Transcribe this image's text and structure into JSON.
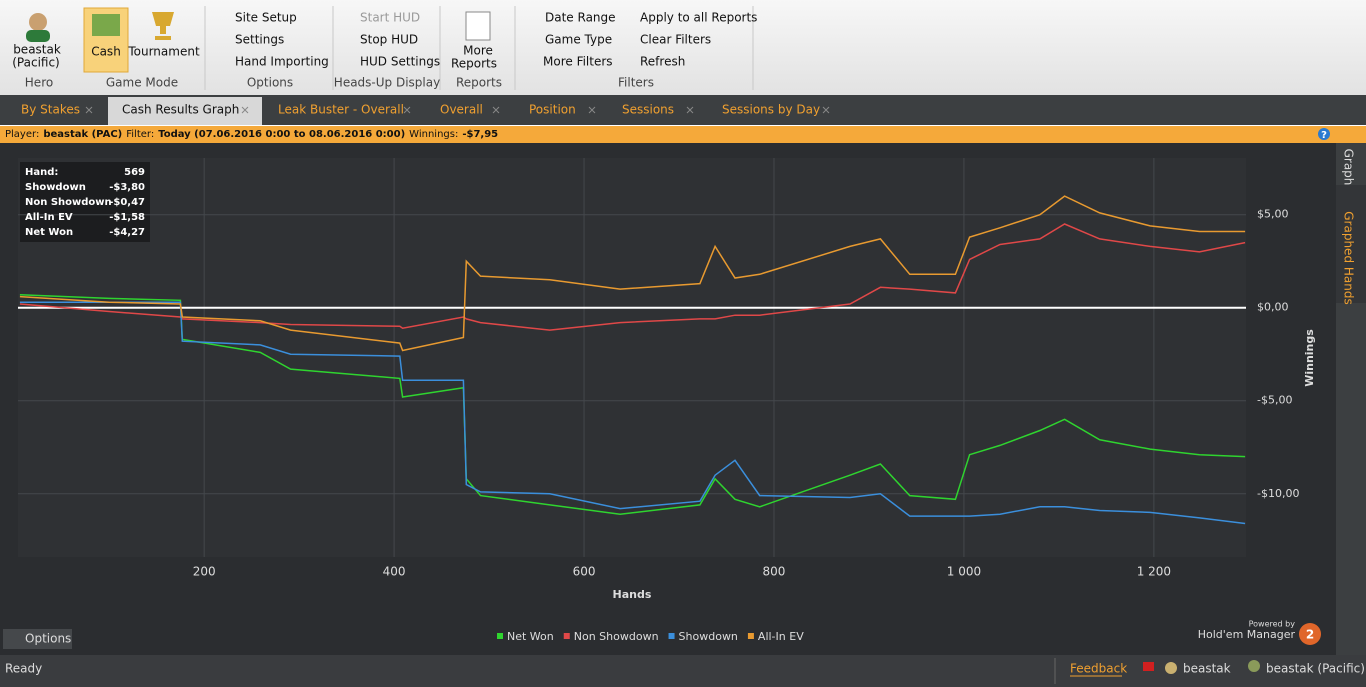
{
  "ribbon": {
    "hero": {
      "name": "beastak",
      "site": "(Pacific)",
      "group": "Hero"
    },
    "game_mode": {
      "items": [
        "Cash",
        "Tournament"
      ],
      "group": "Game Mode"
    },
    "options": {
      "items": [
        "Site Setup",
        "Settings",
        "Hand Importing"
      ],
      "group": "Options"
    },
    "hud": {
      "items": [
        "Start HUD",
        "Stop HUD",
        "HUD Settings"
      ],
      "group": "Heads-Up Display"
    },
    "reports": {
      "items": [
        "More",
        "Reports"
      ],
      "group": "Reports"
    },
    "filters": {
      "items": [
        "Date Range",
        "Game Type",
        "More Filters",
        "Apply to all Reports",
        "Clear Filters",
        "Refresh"
      ],
      "group": "Filters"
    }
  },
  "tabs": [
    "By Stakes",
    "Cash Results Graph",
    "Leak Buster - Overall",
    "Overall",
    "Position",
    "Sessions",
    "Sessions by Day"
  ],
  "info_bar": {
    "player_label": "Player:",
    "player": "beastak (PAC)",
    "filter_label": "Filter:",
    "filter": "Today (07.06.2016 0:00 to 08.06.2016 0:00)",
    "winnings_label": "Winnings:",
    "winnings": "-$7,95",
    "help": "?"
  },
  "stats": [
    [
      "Hand:",
      "569"
    ],
    [
      "Showdown",
      "-$3,80"
    ],
    [
      "Non Showdown",
      "-$0,47"
    ],
    [
      "All-In EV",
      "-$1,58"
    ],
    [
      "Net Won",
      "-$4,27"
    ]
  ],
  "side_tabs": [
    "Graph",
    "Graphed Hands"
  ],
  "options_button": "Options",
  "branding": {
    "powered": "Powered by",
    "product": "Hold'em Manager",
    "version": "2"
  },
  "status": {
    "ready": "Ready",
    "feedback": "Feedback",
    "user": "beastak",
    "hero": "beastak (Pacific)"
  },
  "chart_data": {
    "type": "line",
    "xlabel": "Hands",
    "ylabel": "Winnings",
    "grid": true,
    "x": [
      6,
      100,
      175,
      177,
      259,
      291,
      406,
      409,
      473,
      476,
      491,
      564,
      638,
      722,
      738,
      759,
      785,
      880,
      912,
      943,
      991,
      1006,
      1038,
      1080,
      1106,
      1143,
      1196,
      1248,
      1296
    ],
    "series": [
      {
        "name": "Net Won",
        "color": "#2fd42f",
        "values": [
          0.7,
          0.5,
          0.4,
          -1.7,
          -2.4,
          -3.3,
          -3.8,
          -4.8,
          -4.3,
          -9.2,
          -10.1,
          -10.6,
          -11.1,
          -10.6,
          -9.2,
          -10.3,
          -10.7,
          -9.0,
          -8.4,
          -10.1,
          -10.3,
          -7.9,
          -7.4,
          -6.6,
          -6.0,
          -7.1,
          -7.6,
          -7.9,
          -8.0
        ]
      },
      {
        "name": "Non Showdown",
        "color": "#e04848",
        "values": [
          0.2,
          -0.2,
          -0.5,
          -0.6,
          -0.8,
          -0.9,
          -1.0,
          -1.1,
          -0.5,
          -0.6,
          -0.8,
          -1.2,
          -0.8,
          -0.6,
          -0.6,
          -0.4,
          -0.4,
          0.2,
          1.1,
          1.0,
          0.8,
          2.6,
          3.4,
          3.7,
          4.5,
          3.7,
          3.3,
          3.0,
          3.5
        ]
      },
      {
        "name": "Showdown",
        "color": "#3b8fdc",
        "values": [
          0.3,
          0.3,
          0.3,
          -1.8,
          -2.0,
          -2.5,
          -2.6,
          -3.9,
          -3.9,
          -9.5,
          -9.9,
          -10.0,
          -10.8,
          -10.4,
          -9.0,
          -8.2,
          -10.1,
          -10.2,
          -10.0,
          -11.2,
          -11.2,
          -11.2,
          -11.1,
          -10.7,
          -10.7,
          -10.9,
          -11.0,
          -11.3,
          -11.6
        ]
      },
      {
        "name": "All-In EV",
        "color": "#e89a30",
        "values": [
          0.6,
          0.3,
          0.2,
          -0.5,
          -0.7,
          -1.2,
          -1.9,
          -2.3,
          -1.6,
          2.5,
          1.7,
          1.5,
          1.0,
          1.3,
          3.3,
          1.6,
          1.8,
          3.3,
          3.7,
          1.8,
          1.8,
          3.8,
          4.3,
          5.0,
          6.0,
          5.1,
          4.4,
          4.1,
          4.1
        ]
      }
    ],
    "xlim": [
      4,
      1297
    ],
    "ylim": [
      -13.4,
      8.05
    ],
    "xticks": [
      200,
      400,
      600,
      800,
      {
        "value": 1000,
        "label": "1 000"
      },
      {
        "value": 1200,
        "label": "1 200"
      }
    ],
    "yticks": [
      {
        "value": 5,
        "label": "$5,00"
      },
      {
        "value": 0,
        "label": "$0,00"
      },
      {
        "value": -5,
        "label": "-$5,00"
      },
      {
        "value": -10,
        "label": "-$10,00"
      }
    ]
  }
}
